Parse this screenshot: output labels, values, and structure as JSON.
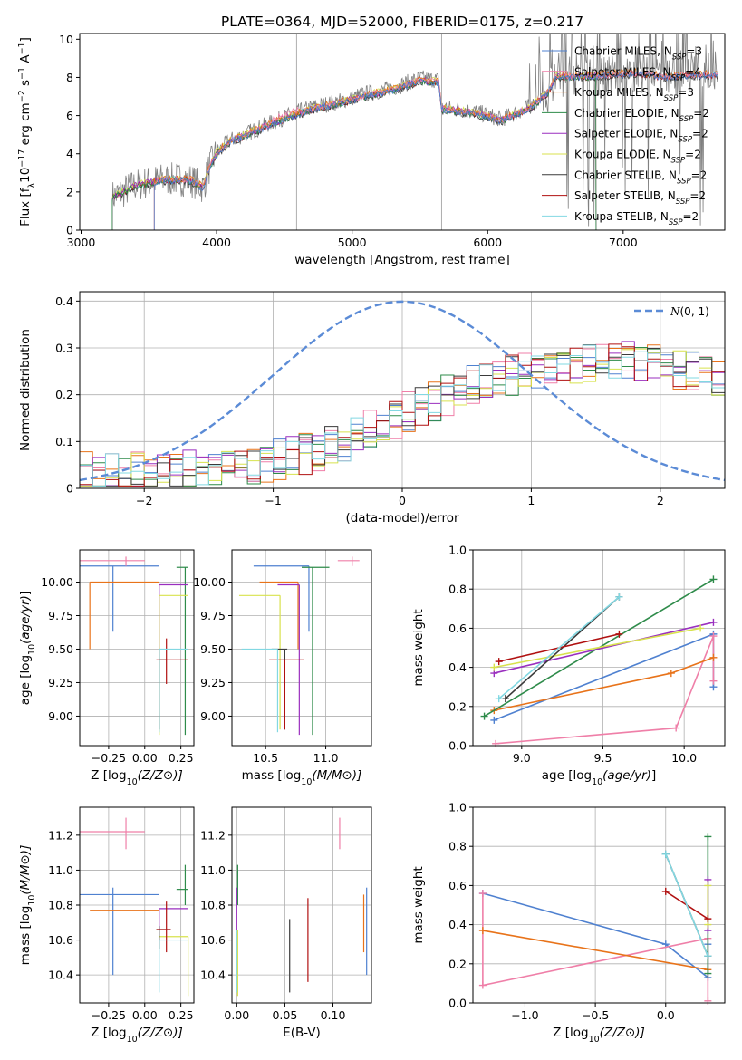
{
  "title": "PLATE=0364, MJD=52000, FIBERID=0175, z=0.217",
  "series": [
    {
      "name": "Chabrier MILES",
      "color": "#4f81d0"
    },
    {
      "name": "Salpeter MILES",
      "color": "#ef7fa8"
    },
    {
      "name": "Kroupa MILES",
      "color": "#e8731a"
    },
    {
      "name": "Chabrier ELODIE",
      "color": "#2e8b4a"
    },
    {
      "name": "Salpeter ELODIE",
      "color": "#9a2fbf"
    },
    {
      "name": "Kroupa ELODIE",
      "color": "#d8e24d"
    },
    {
      "name": "Chabrier STELIB",
      "color": "#3a3a3a"
    },
    {
      "name": "Salpeter STELIB",
      "color": "#b01010"
    },
    {
      "name": "Kroupa STELIB",
      "color": "#82d8e2"
    }
  ],
  "chart_data": [
    {
      "id": "spectrum",
      "type": "line",
      "xlabel": "wavelength [Angstrom, rest frame]",
      "ylabel": "Flux [f_λ 10^-17 erg cm^-2 s^-1 A^-1]",
      "xlim": [
        2990,
        7750
      ],
      "ylim": [
        0,
        10.3
      ],
      "xticks": [
        3000,
        4000,
        5000,
        6000,
        7000
      ],
      "yticks": [
        0,
        2,
        4,
        6,
        8,
        10
      ],
      "legend": [
        {
          "text": "Chabrier MILES, N",
          "sub": "SSP",
          "tail": "=3"
        },
        {
          "text": "Salpeter MILES, N",
          "sub": "SSP",
          "tail": "=4"
        },
        {
          "text": "Kroupa MILES, N",
          "sub": "SSP",
          "tail": "=3"
        },
        {
          "text": "Chabrier ELODIE, N",
          "sub": "SSP",
          "tail": "=2"
        },
        {
          "text": "Salpeter ELODIE, N",
          "sub": "SSP",
          "tail": "=2"
        },
        {
          "text": "Kroupa ELODIE, N",
          "sub": "SSP",
          "tail": "=2"
        },
        {
          "text": "Chabrier STELIB, N",
          "sub": "SSP",
          "tail": "=2"
        },
        {
          "text": "Salpeter STELIB, N",
          "sub": "SSP",
          "tail": "=2"
        },
        {
          "text": "Kroupa STELIB, N",
          "sub": "SSP",
          "tail": "=2"
        }
      ],
      "data_color": "#808080",
      "continuum": {
        "x": [
          3230,
          3400,
          3600,
          3800,
          3900,
          3950,
          4000,
          4100,
          4300,
          4500,
          4700,
          4900,
          5100,
          5300,
          5500,
          5640,
          5660,
          5900,
          6100,
          6300,
          6450,
          6500,
          6700,
          6900,
          7100,
          7300,
          7500,
          7700
        ],
        "y": [
          1.7,
          2.3,
          2.6,
          2.6,
          2.2,
          3.3,
          4.0,
          4.6,
          5.2,
          5.8,
          6.3,
          6.6,
          7.0,
          7.3,
          7.8,
          7.7,
          6.3,
          6.1,
          5.7,
          6.3,
          7.2,
          8.0,
          8.0,
          8.1,
          8.2,
          8.0,
          8.1,
          8.1
        ]
      },
      "miles_start": 3540,
      "elodie_end": 6800
    },
    {
      "id": "residuals",
      "type": "bar",
      "xlabel": "(data-model)/error",
      "ylabel": "Normed distribution",
      "xlim": [
        -2.5,
        2.5
      ],
      "ylim": [
        0,
        0.42
      ],
      "xticks": [
        -2,
        -1,
        0,
        1,
        2
      ],
      "yticks": [
        0.0,
        0.1,
        0.2,
        0.3,
        0.4
      ],
      "legend": "N(0,1)",
      "gaussian_color": "#5b8bd6",
      "bin_width": 0.1
    },
    {
      "id": "age-vs-Z",
      "type": "scatter",
      "xlabel": "Z [log10(Z/Z⊙)]",
      "ylabel": "age  [log10(age/yr)]",
      "xlim": [
        -0.45,
        0.34
      ],
      "ylim": [
        8.78,
        10.24
      ],
      "xticks": [
        -0.25,
        0.0,
        0.25
      ],
      "xticklabels": [
        "−0.25",
        "0.00",
        "0.25"
      ],
      "yticks": [
        9.0,
        9.25,
        9.5,
        9.75,
        10.0
      ],
      "yticklabels": [
        "9.00",
        "9.25",
        "9.50",
        "9.75",
        "10.00"
      ],
      "points": [
        {
          "s": 0,
          "x": -0.22,
          "xlo": -0.45,
          "xhi": 0.1,
          "y": 10.12,
          "ylo": 9.63,
          "yhi": 10.12
        },
        {
          "s": 1,
          "x": -0.13,
          "xlo": -0.45,
          "xhi": 0.0,
          "y": 10.16,
          "ylo": 10.12,
          "yhi": 10.19
        },
        {
          "s": 2,
          "x": -0.38,
          "xlo": -0.38,
          "xhi": 0.1,
          "y": 10.0,
          "ylo": 9.5,
          "yhi": 10.0
        },
        {
          "s": 3,
          "x": 0.28,
          "xlo": 0.22,
          "xhi": 0.3,
          "y": 10.11,
          "ylo": 8.86,
          "yhi": 10.11
        },
        {
          "s": 4,
          "x": 0.1,
          "xlo": 0.1,
          "xhi": 0.3,
          "y": 9.98,
          "ylo": 9.5,
          "yhi": 9.98
        },
        {
          "s": 5,
          "x": 0.1,
          "xlo": 0.1,
          "xhi": 0.3,
          "y": 9.9,
          "ylo": 8.86,
          "yhi": 9.9
        },
        {
          "s": 6,
          "x": 0.1,
          "xlo": 0.1,
          "xhi": 0.15,
          "y": 9.42,
          "ylo": 8.9,
          "yhi": 9.5
        },
        {
          "s": 7,
          "x": 0.15,
          "xlo": 0.08,
          "xhi": 0.3,
          "y": 9.42,
          "ylo": 9.24,
          "yhi": 9.58
        },
        {
          "s": 8,
          "x": 0.1,
          "xlo": 0.1,
          "xhi": 0.3,
          "y": 9.5,
          "ylo": 8.88,
          "yhi": 9.5
        }
      ]
    },
    {
      "id": "age-vs-mass",
      "type": "scatter",
      "xlabel": "mass [log10(M/M⊙)]",
      "ylabel": "",
      "xlim": [
        10.22,
        11.38
      ],
      "ylim": [
        8.78,
        10.24
      ],
      "xticks": [
        10.5,
        11.0
      ],
      "xticklabels": [
        "10.5",
        "11.0"
      ],
      "yticks": [
        9.0,
        9.25,
        9.5,
        9.75,
        10.0
      ],
      "yticklabels": [
        "9.00",
        "9.25",
        "9.50",
        "9.75",
        "10.00"
      ],
      "points": [
        {
          "s": 0,
          "x": 10.86,
          "xlo": 10.4,
          "xhi": 10.86,
          "y": 10.12,
          "ylo": 9.63,
          "yhi": 10.12
        },
        {
          "s": 1,
          "x": 11.22,
          "xlo": 11.1,
          "xhi": 11.28,
          "y": 10.16,
          "ylo": 10.12,
          "yhi": 10.19
        },
        {
          "s": 2,
          "x": 10.77,
          "xlo": 10.45,
          "xhi": 10.77,
          "y": 10.0,
          "ylo": 9.5,
          "yhi": 10.0
        },
        {
          "s": 3,
          "x": 10.89,
          "xlo": 10.8,
          "xhi": 11.03,
          "y": 10.11,
          "ylo": 8.86,
          "yhi": 10.11
        },
        {
          "s": 4,
          "x": 10.78,
          "xlo": 10.6,
          "xhi": 10.78,
          "y": 9.98,
          "ylo": 8.86,
          "yhi": 9.98
        },
        {
          "s": 5,
          "x": 10.62,
          "xlo": 10.28,
          "xhi": 10.62,
          "y": 9.9,
          "ylo": 8.9,
          "yhi": 9.9
        },
        {
          "s": 6,
          "x": 10.66,
          "xlo": 10.55,
          "xhi": 10.68,
          "y": 9.5,
          "ylo": 8.9,
          "yhi": 9.5
        },
        {
          "s": 7,
          "x": 10.66,
          "xlo": 10.53,
          "xhi": 10.82,
          "y": 9.42,
          "ylo": 8.9,
          "yhi": 9.42
        },
        {
          "s": 8,
          "x": 10.6,
          "xlo": 10.3,
          "xhi": 10.6,
          "y": 9.5,
          "ylo": 8.88,
          "yhi": 9.5
        }
      ]
    },
    {
      "id": "weight-vs-age",
      "type": "line",
      "xlabel": "age  [log10(age/yr)]",
      "ylabel": "mass weight",
      "xlim": [
        8.7,
        10.25
      ],
      "ylim": [
        0,
        1
      ],
      "xticks": [
        9.0,
        9.5,
        10.0
      ],
      "xticklabels": [
        "9.0",
        "9.5",
        "10.0"
      ],
      "yticks": [
        0.0,
        0.2,
        0.4,
        0.6,
        0.8,
        1.0
      ],
      "yticklabels": [
        "0.0",
        "0.2",
        "0.4",
        "0.6",
        "0.8",
        "1.0"
      ],
      "series": [
        {
          "s": 0,
          "x": [
            8.83,
            10.18,
            10.18
          ],
          "y": [
            0.13,
            0.57,
            0.3
          ]
        },
        {
          "s": 1,
          "x": [
            8.84,
            9.95,
            10.18,
            10.18
          ],
          "y": [
            0.01,
            0.09,
            0.56,
            0.33
          ]
        },
        {
          "s": 2,
          "x": [
            8.83,
            9.92,
            10.18
          ],
          "y": [
            0.18,
            0.37,
            0.45
          ]
        },
        {
          "s": 3,
          "x": [
            8.77,
            10.18
          ],
          "y": [
            0.15,
            0.85
          ]
        },
        {
          "s": 4,
          "x": [
            8.83,
            10.18
          ],
          "y": [
            0.37,
            0.63
          ]
        },
        {
          "s": 5,
          "x": [
            8.83,
            10.1
          ],
          "y": [
            0.4,
            0.6
          ]
        },
        {
          "s": 6,
          "x": [
            8.9,
            9.6
          ],
          "y": [
            0.24,
            0.76
          ]
        },
        {
          "s": 7,
          "x": [
            8.86,
            9.6
          ],
          "y": [
            0.43,
            0.57
          ]
        },
        {
          "s": 8,
          "x": [
            8.86,
            9.6
          ],
          "y": [
            0.24,
            0.76
          ]
        }
      ]
    },
    {
      "id": "mass-vs-Z",
      "type": "scatter",
      "xlabel": "Z [log10(Z/Z⊙)]",
      "ylabel": "mass [log10(M/M⊙)]",
      "xlim": [
        -0.45,
        0.34
      ],
      "ylim": [
        10.24,
        11.36
      ],
      "xticks": [
        -0.25,
        0.0,
        0.25
      ],
      "xticklabels": [
        "−0.25",
        "0.00",
        "0.25"
      ],
      "yticks": [
        10.4,
        10.6,
        10.8,
        11.0,
        11.2
      ],
      "yticklabels": [
        "10.4",
        "10.6",
        "10.8",
        "11.0",
        "11.2"
      ],
      "points": [
        {
          "s": 0,
          "x": -0.22,
          "xlo": -0.45,
          "xhi": 0.1,
          "y": 10.86,
          "ylo": 10.4,
          "yhi": 10.9
        },
        {
          "s": 1,
          "x": -0.13,
          "xlo": -0.45,
          "xhi": 0.0,
          "y": 11.22,
          "ylo": 11.12,
          "yhi": 11.3
        },
        {
          "s": 2,
          "x": -0.38,
          "xlo": -0.38,
          "xhi": 0.1,
          "y": 10.77,
          "ylo": 10.77,
          "yhi": 10.77
        },
        {
          "s": 3,
          "x": 0.28,
          "xlo": 0.22,
          "xhi": 0.3,
          "y": 10.89,
          "ylo": 10.8,
          "yhi": 11.03
        },
        {
          "s": 4,
          "x": 0.1,
          "xlo": 0.1,
          "xhi": 0.3,
          "y": 10.78,
          "ylo": 10.66,
          "yhi": 10.78
        },
        {
          "s": 5,
          "x": 0.3,
          "xlo": 0.1,
          "xhi": 0.3,
          "y": 10.62,
          "ylo": 10.28,
          "yhi": 10.62
        },
        {
          "s": 6,
          "x": 0.1,
          "xlo": 0.08,
          "xhi": 0.18,
          "y": 10.66,
          "ylo": 10.55,
          "yhi": 10.68
        },
        {
          "s": 7,
          "x": 0.15,
          "xlo": 0.08,
          "xhi": 0.18,
          "y": 10.66,
          "ylo": 10.53,
          "yhi": 10.82
        },
        {
          "s": 8,
          "x": 0.1,
          "xlo": 0.1,
          "xhi": 0.3,
          "y": 10.6,
          "ylo": 10.3,
          "yhi": 10.6
        }
      ]
    },
    {
      "id": "mass-vs-EBV",
      "type": "scatter",
      "xlabel": "E(B-V)",
      "ylabel": "",
      "xlim": [
        -0.005,
        0.14
      ],
      "ylim": [
        10.24,
        11.36
      ],
      "xticks": [
        0.0,
        0.05,
        0.1
      ],
      "xticklabels": [
        "0.00",
        "0.05",
        "0.10"
      ],
      "yticks": [
        10.4,
        10.6,
        10.8,
        11.0,
        11.2
      ],
      "yticklabels": [
        "10.4",
        "10.6",
        "10.8",
        "11.0",
        "11.2"
      ],
      "points": [
        {
          "s": 0,
          "x": 0.135,
          "xlo": 0.135,
          "xhi": 0.135,
          "y": 10.86,
          "ylo": 10.4,
          "yhi": 10.9
        },
        {
          "s": 1,
          "x": 0.107,
          "xlo": 0.107,
          "xhi": 0.107,
          "y": 11.22,
          "ylo": 11.12,
          "yhi": 11.3
        },
        {
          "s": 2,
          "x": 0.132,
          "xlo": 0.132,
          "xhi": 0.132,
          "y": 10.77,
          "ylo": 10.53,
          "yhi": 10.86
        },
        {
          "s": 3,
          "x": 0.001,
          "xlo": 0.001,
          "xhi": 0.001,
          "y": 10.89,
          "ylo": 10.8,
          "yhi": 11.03
        },
        {
          "s": 4,
          "x": 0.0,
          "xlo": 0.0,
          "xhi": 0.0,
          "y": 10.78,
          "ylo": 10.66,
          "yhi": 10.9
        },
        {
          "s": 5,
          "x": 0.001,
          "xlo": 0.001,
          "xhi": 0.001,
          "y": 10.62,
          "ylo": 10.28,
          "yhi": 10.66
        },
        {
          "s": 6,
          "x": 0.055,
          "xlo": 0.055,
          "xhi": 0.055,
          "y": 10.6,
          "ylo": 10.3,
          "yhi": 10.72
        },
        {
          "s": 7,
          "x": 0.074,
          "xlo": 0.074,
          "xhi": 0.074,
          "y": 10.66,
          "ylo": 10.36,
          "yhi": 10.84
        },
        {
          "s": 8,
          "x": 0.0,
          "xlo": 0.0,
          "xhi": 0.0,
          "y": 10.6,
          "ylo": 10.3,
          "yhi": 10.66
        }
      ]
    },
    {
      "id": "weight-vs-Z",
      "type": "line",
      "xlabel": "Z [log10(Z/Z⊙)]",
      "ylabel": "mass weight",
      "xlim": [
        -1.37,
        0.42
      ],
      "ylim": [
        0,
        1
      ],
      "xticks": [
        -1.0,
        -0.5,
        0.0
      ],
      "xticklabels": [
        "−1.0",
        "−0.5",
        "0.0"
      ],
      "yticks": [
        0.0,
        0.2,
        0.4,
        0.6,
        0.8,
        1.0
      ],
      "yticklabels": [
        "0.0",
        "0.2",
        "0.4",
        "0.6",
        "0.8",
        "1.0"
      ],
      "series": [
        {
          "s": 0,
          "x": [
            -1.3,
            0.0,
            0.3,
            0.3
          ],
          "y": [
            0.56,
            0.3,
            0.13,
            0.3
          ]
        },
        {
          "s": 1,
          "x": [
            -1.3,
            -1.3,
            0.3,
            0.3
          ],
          "y": [
            0.56,
            0.09,
            0.33,
            0.01
          ]
        },
        {
          "s": 2,
          "x": [
            -1.3,
            0.3
          ],
          "y": [
            0.37,
            0.17
          ]
        },
        {
          "s": 3,
          "x": [
            0.3,
            0.3
          ],
          "y": [
            0.85,
            0.15
          ]
        },
        {
          "s": 4,
          "x": [
            0.3,
            0.3
          ],
          "y": [
            0.63,
            0.37
          ]
        },
        {
          "s": 5,
          "x": [
            0.3,
            0.3
          ],
          "y": [
            0.6,
            0.4
          ]
        },
        {
          "s": 6,
          "x": [
            0.0,
            0.3
          ],
          "y": [
            0.76,
            0.24
          ]
        },
        {
          "s": 7,
          "x": [
            0.0,
            0.3
          ],
          "y": [
            0.57,
            0.43
          ]
        },
        {
          "s": 8,
          "x": [
            0.0,
            0.3
          ],
          "y": [
            0.76,
            0.24
          ]
        }
      ]
    }
  ]
}
